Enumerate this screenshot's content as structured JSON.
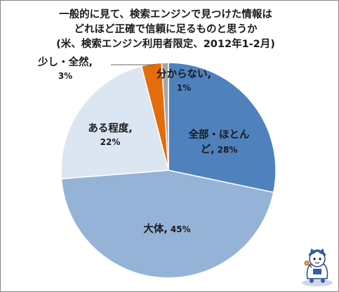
{
  "chart_data": {
    "type": "pie",
    "title_lines": [
      "一般的に見て、検索エンジンで見つけた情報は",
      "どれほど正確で信頼に足るものと思うか",
      "(米、検索エンジン利用者限定、2012年1-2月)"
    ],
    "slices": [
      {
        "label": "全部・ほとんど",
        "label_lines": [
          "全部・ほとん",
          "ど,"
        ],
        "percent_text": "28%",
        "value": 28,
        "color": "#4f81bd"
      },
      {
        "label": "大体",
        "label_lines": [
          "大体,"
        ],
        "percent_text": "45%",
        "value": 45,
        "color": "#95b3d7"
      },
      {
        "label": "ある程度",
        "label_lines": [
          "ある程度,"
        ],
        "percent_text": "22%",
        "value": 22,
        "color": "#dce6f2"
      },
      {
        "label": "少し・全然",
        "label_lines": [
          "少し・全然,"
        ],
        "percent_text": "3%",
        "value": 3,
        "color": "#e46c0a"
      },
      {
        "label": "分からない",
        "label_lines": [
          "分からない,"
        ],
        "percent_text": "1%",
        "value": 1,
        "color": "#a6a6a6"
      }
    ],
    "legend": "none",
    "data_labels": "category-and-percent"
  },
  "mascot": {
    "icon": "blue-cat-mascot-icon"
  }
}
